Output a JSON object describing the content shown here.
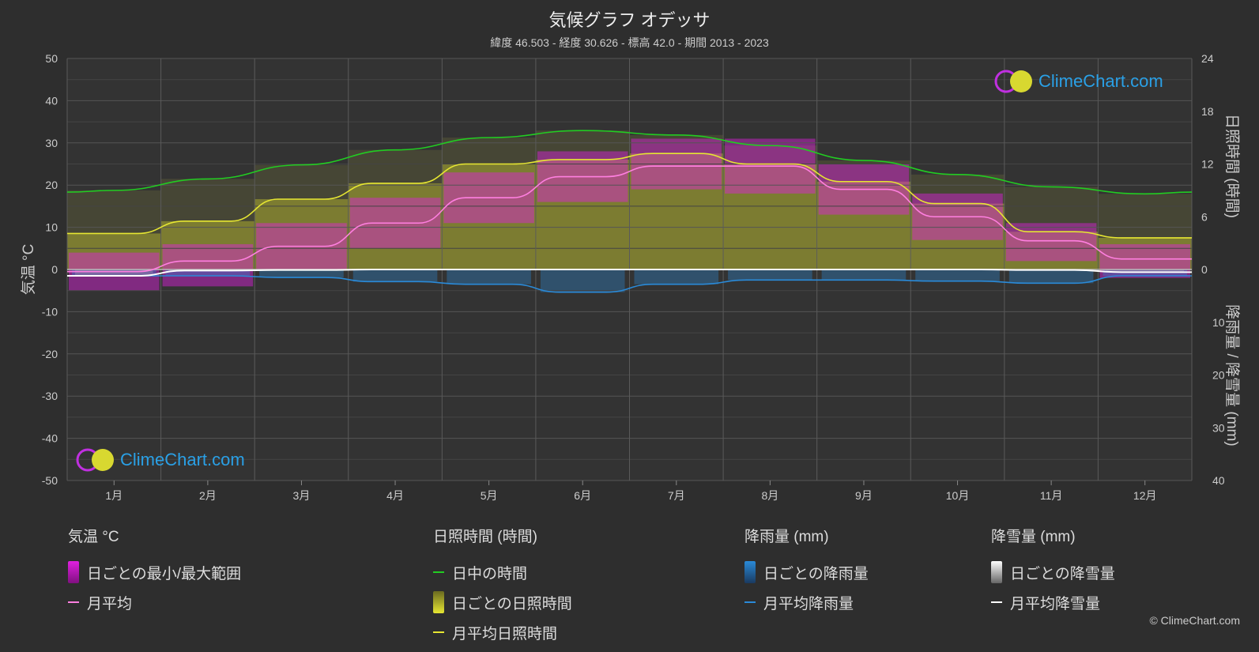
{
  "title": "気候グラフ オデッサ",
  "subtitle": "緯度 46.503 - 経度 30.626 - 標高 42.0 - 期間 2013 - 2023",
  "logo_text": "ClimeChart.com",
  "copyright": "© ClimeChart.com",
  "chart_data": {
    "type": "line",
    "categories": [
      "1月",
      "2月",
      "3月",
      "4月",
      "5月",
      "6月",
      "7月",
      "8月",
      "9月",
      "10月",
      "11月",
      "12月"
    ],
    "left_axis": {
      "label": "気温 °C",
      "ylim": [
        -50,
        50
      ],
      "ticks": [
        "50",
        "40",
        "30",
        "20",
        "10",
        "0",
        "-10",
        "-20",
        "-30",
        "-40",
        "-50"
      ]
    },
    "right_axis_top": {
      "label": "日照時間 (時間)",
      "ylim": [
        0,
        24
      ],
      "ticks": [
        "24",
        "18",
        "12",
        "6",
        "0"
      ]
    },
    "right_axis_bottom": {
      "label": "降雨量 / 降雪量 (mm)",
      "ylim": [
        0,
        40
      ],
      "ticks": [
        "10",
        "20",
        "30",
        "40"
      ]
    },
    "grid": true,
    "series": [
      {
        "name": "日中の時間",
        "axis": "sunshine",
        "color": "#22cc22",
        "values": [
          9.0,
          10.3,
          11.9,
          13.6,
          15.0,
          15.8,
          15.3,
          14.1,
          12.4,
          10.8,
          9.4,
          8.6
        ]
      },
      {
        "name": "月平均日照時間",
        "axis": "sunshine",
        "color": "#e6e632",
        "values": [
          4.1,
          5.5,
          8.0,
          9.8,
          12.0,
          12.5,
          13.2,
          12.0,
          10.0,
          7.5,
          4.3,
          3.6
        ]
      },
      {
        "name": "月平均",
        "axis": "temperature",
        "color": "#ff7fe0",
        "values": [
          -0.5,
          2.0,
          5.5,
          11.0,
          17.0,
          22.0,
          24.5,
          24.5,
          19.0,
          12.5,
          6.8,
          2.5
        ]
      },
      {
        "name": "月平均降雨量",
        "axis": "precipitation",
        "color": "#2a8ad8",
        "values": [
          1.2,
          1.2,
          1.5,
          2.3,
          2.8,
          4.3,
          2.8,
          2.0,
          2.0,
          2.2,
          2.6,
          1.2
        ]
      },
      {
        "name": "月平均降雪量",
        "axis": "precipitation",
        "color": "#ffffff",
        "values": [
          1.2,
          0.2,
          0.1,
          0.0,
          0.0,
          0.0,
          0.0,
          0.0,
          0.0,
          0.0,
          0.1,
          0.5
        ]
      }
    ],
    "bands": [
      {
        "name": "日ごとの最小/最大範囲",
        "axis": "temperature",
        "color": "#e020e0",
        "min": [
          -5,
          -4,
          0,
          5,
          11,
          16,
          19,
          18,
          13,
          7,
          2,
          -2
        ],
        "max": [
          4,
          6,
          11,
          17,
          23,
          28,
          31,
          31,
          25,
          18,
          11,
          6
        ]
      },
      {
        "name": "日ごとの日照時間",
        "axis": "sunshine",
        "color": "#b8b830",
        "values": [
          4.1,
          5.5,
          8.0,
          9.8,
          12.0,
          12.5,
          13.2,
          12.0,
          10.0,
          7.5,
          4.3,
          3.6
        ]
      },
      {
        "name": "日ごとの降雨量",
        "axis": "precipitation",
        "color": "#2a8ad8",
        "values": [
          1.2,
          1.2,
          1.5,
          2.3,
          2.8,
          4.3,
          2.8,
          2.0,
          2.0,
          2.2,
          2.6,
          1.2
        ]
      },
      {
        "name": "日ごとの降雪量",
        "axis": "precipitation",
        "color": "#aaaaaa",
        "values": [
          1.2,
          0.2,
          0.1,
          0.0,
          0.0,
          0.0,
          0.0,
          0.0,
          0.0,
          0.0,
          0.1,
          0.5
        ]
      }
    ]
  },
  "legend": {
    "temperature": {
      "heading": "気温 °C",
      "items": [
        "日ごとの最小/最大範囲",
        "月平均"
      ]
    },
    "sunshine": {
      "heading": "日照時間 (時間)",
      "items": [
        "日中の時間",
        "日ごとの日照時間",
        "月平均日照時間"
      ]
    },
    "rain": {
      "heading": "降雨量 (mm)",
      "items": [
        "日ごとの降雨量",
        "月平均降雨量"
      ]
    },
    "snow": {
      "heading": "降雪量 (mm)",
      "items": [
        "日ごとの降雪量",
        "月平均降雪量"
      ]
    }
  },
  "colors": {
    "background": "#2e2e2e",
    "daylight": "#22cc22",
    "sunshine": "#e6e632",
    "temperature": "#ff7fe0",
    "temp_range": "#e020e0",
    "rain": "#2a8ad8",
    "snow": "#ffffff"
  }
}
